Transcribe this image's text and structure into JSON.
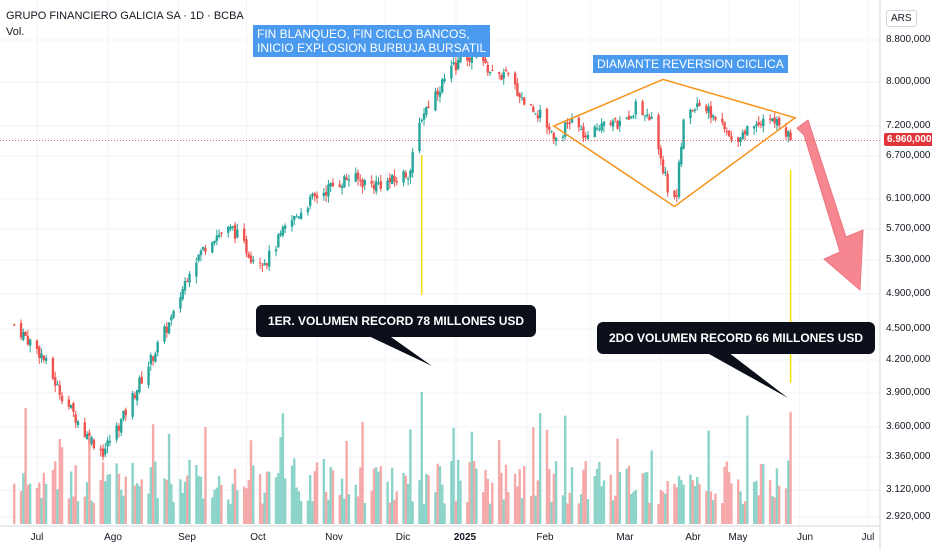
{
  "chart_data": {
    "type": "candlestick",
    "title": "GRUPO FINANCIERO GALICIA SA · 1D · BCBA",
    "volume_label": "Vol.",
    "currency": "ARS",
    "last_price": "6.960,000",
    "y_ticks": [
      "8.800,000",
      "8.000,000",
      "7.200,000",
      "6.700,000",
      "6.100,000",
      "5.700,000",
      "5.300,000",
      "4.900,000",
      "4.500,000",
      "4.200,000",
      "3.900,000",
      "3.600,000",
      "3.360,000",
      "3.120,000",
      "2.920,000"
    ],
    "y_tick_values": [
      8800,
      8000,
      7200,
      6700,
      6100,
      5700,
      5300,
      4900,
      4500,
      4200,
      3900,
      3600,
      3360,
      3120,
      2920
    ],
    "x_ticks": [
      "Jul",
      "Ago",
      "Sep",
      "Oct",
      "Nov",
      "Dic",
      "2025",
      "Feb",
      "Mar",
      "Abr",
      "May",
      "Jun",
      "Jul"
    ],
    "bold_x_tick": "2025",
    "close_waypoints": [
      {
        "date": "2024-06-21",
        "close": 4550
      },
      {
        "date": "2024-07-03",
        "close": 4250
      },
      {
        "date": "2024-07-10",
        "close": 3950
      },
      {
        "date": "2024-07-22",
        "close": 3550
      },
      {
        "date": "2024-07-30",
        "close": 3400
      },
      {
        "date": "2024-08-07",
        "close": 3650
      },
      {
        "date": "2024-08-20",
        "close": 4200
      },
      {
        "date": "2024-08-30",
        "close": 4650
      },
      {
        "date": "2024-09-06",
        "close": 5200
      },
      {
        "date": "2024-09-16",
        "close": 5600
      },
      {
        "date": "2024-09-25",
        "close": 5700
      },
      {
        "date": "2024-10-03",
        "close": 5350
      },
      {
        "date": "2024-10-10",
        "close": 5300
      },
      {
        "date": "2024-10-18",
        "close": 5700
      },
      {
        "date": "2024-10-28",
        "close": 6050
      },
      {
        "date": "2024-11-06",
        "close": 6250
      },
      {
        "date": "2024-11-15",
        "close": 6400
      },
      {
        "date": "2024-11-25",
        "close": 6300
      },
      {
        "date": "2024-12-05",
        "close": 6350
      },
      {
        "date": "2024-12-12",
        "close": 6500
      },
      {
        "date": "2024-12-17",
        "close": 7400
      },
      {
        "date": "2024-12-23",
        "close": 7800
      },
      {
        "date": "2025-01-02",
        "close": 8400
      },
      {
        "date": "2025-01-10",
        "close": 8500
      },
      {
        "date": "2025-01-17",
        "close": 8150
      },
      {
        "date": "2025-01-24",
        "close": 8100
      },
      {
        "date": "2025-01-31",
        "close": 7650
      },
      {
        "date": "2025-02-07",
        "close": 7400
      },
      {
        "date": "2025-02-14",
        "close": 7000
      },
      {
        "date": "2025-02-21",
        "close": 7300
      },
      {
        "date": "2025-02-28",
        "close": 6950
      },
      {
        "date": "2025-03-07",
        "close": 7350
      },
      {
        "date": "2025-03-14",
        "close": 7200
      },
      {
        "date": "2025-03-21",
        "close": 7550
      },
      {
        "date": "2025-03-28",
        "close": 7300
      },
      {
        "date": "2025-04-04",
        "close": 6250
      },
      {
        "date": "2025-04-08",
        "close": 6150
      },
      {
        "date": "2025-04-11",
        "close": 7250
      },
      {
        "date": "2025-04-17",
        "close": 7650
      },
      {
        "date": "2025-04-25",
        "close": 7350
      },
      {
        "date": "2025-05-02",
        "close": 6950
      },
      {
        "date": "2025-05-09",
        "close": 7150
      },
      {
        "date": "2025-05-16",
        "close": 7350
      },
      {
        "date": "2025-05-23",
        "close": 7250
      },
      {
        "date": "2025-05-28",
        "close": 6960
      }
    ],
    "volume_spikes": [
      {
        "date": "2024-12-17",
        "volume_usd_millions": 78
      },
      {
        "date": "2025-05-28",
        "volume_usd_millions": 66
      }
    ],
    "diamond_pattern": [
      {
        "date": "2025-02-13",
        "price": 7200
      },
      {
        "date": "2025-04-02",
        "price": 8050
      },
      {
        "date": "2025-05-30",
        "price": 7350
      },
      {
        "date": "2025-04-07",
        "price": 6000
      }
    ]
  },
  "annotations": {
    "top_callout": "FIN BLANQUEO, FIN CICLO BANCOS,\nINICIO EXPLOSION BURBUJA BURSATIL",
    "diamond_callout": "DIAMANTE REVERSION CICLICA",
    "volume1": "1ER. VOLUMEN RECORD 78 MILLONES USD",
    "volume2": "2DO VOLUMEN RECORD 66 MILLONES USD"
  },
  "colors": {
    "up": "#26a69a",
    "down": "#ef5350",
    "vol_up": "#7fcfc4",
    "vol_down": "#f4a0a0",
    "diamond": "#f7941d",
    "vertical_marker": "#f5e10a",
    "arrow": "#f5717c",
    "callout_blue": "#4a9bf0",
    "callout_dark": "#0b0f19"
  }
}
